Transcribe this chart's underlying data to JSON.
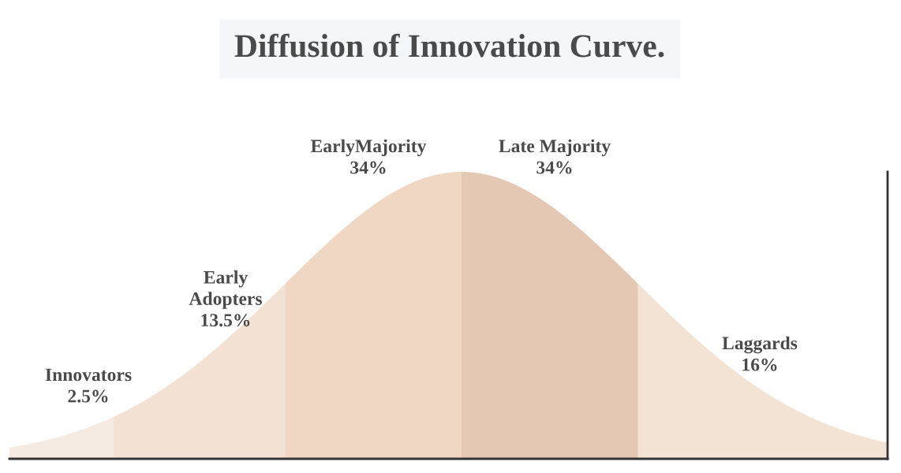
{
  "chart_data": {
    "type": "other",
    "title": "Diffusion of Innovation Curve.",
    "categories": [
      "Innovators",
      "Early Adopters",
      "EarlyMajority",
      "Late Majority",
      "Laggards"
    ],
    "values": [
      2.5,
      13.5,
      34,
      34,
      16
    ],
    "value_labels": [
      "2.5%",
      "13.5%",
      "34%",
      "34%",
      "16%"
    ],
    "colors": [
      "#f5ebe2",
      "#f3e2d3",
      "#f0d7c3",
      "#e4c8b4",
      "#f3e3d4"
    ]
  }
}
